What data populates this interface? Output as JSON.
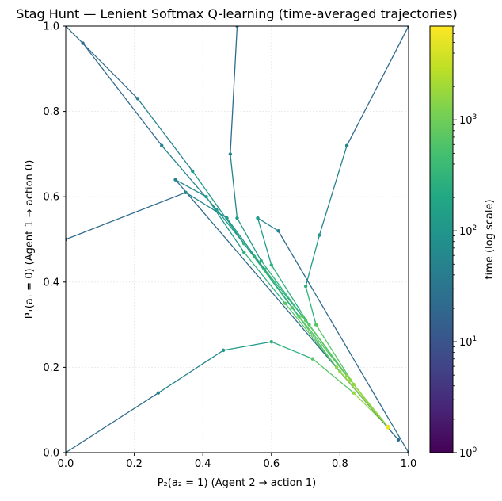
{
  "chart_data": {
    "type": "line",
    "title": "Stag Hunt — Lenient Softmax Q-learning (time-averaged trajectories)",
    "xlabel": "P₂(a₂ = 1)  (Agent 2 → action 1)",
    "ylabel": "P₁(a₁ = 0)  (Agent 1 → action 0)",
    "xlim": [
      0,
      1
    ],
    "ylim": [
      0,
      1
    ],
    "x_ticks": [
      "0.0",
      "0.2",
      "0.4",
      "0.6",
      "0.8",
      "1.0"
    ],
    "y_ticks": [
      "0.0",
      "0.2",
      "0.4",
      "0.6",
      "0.8",
      "1.0"
    ],
    "grid": true,
    "colorbar": {
      "label": "time (log scale)",
      "colormap": "viridis",
      "scale": "log",
      "range": [
        1,
        7000
      ],
      "ticks": [
        {
          "value": 1,
          "base": "10",
          "exp": "0"
        },
        {
          "value": 10,
          "base": "10",
          "exp": "1"
        },
        {
          "value": 100,
          "base": "10",
          "exp": "2"
        },
        {
          "value": 1000,
          "base": "10",
          "exp": "3"
        }
      ]
    },
    "attractor": {
      "x": 0.94,
      "y": 0.06
    },
    "corner_starts": [
      [
        0,
        0
      ],
      [
        0,
        1
      ],
      [
        1,
        0
      ],
      [
        1,
        1
      ]
    ],
    "series": [
      {
        "points": [
          [
            0.0,
            1.0
          ],
          [
            0.21,
            0.83
          ],
          [
            0.37,
            0.66
          ],
          [
            0.52,
            0.49
          ],
          [
            0.66,
            0.34
          ],
          [
            0.79,
            0.2
          ],
          [
            0.94,
            0.06
          ]
        ]
      },
      {
        "points": [
          [
            1.0,
            1.0
          ],
          [
            0.82,
            0.72
          ],
          [
            0.74,
            0.51
          ],
          [
            0.7,
            0.39
          ],
          [
            0.73,
            0.3
          ],
          [
            0.84,
            0.16
          ],
          [
            0.94,
            0.06
          ]
        ]
      },
      {
        "points": [
          [
            0.0,
            0.0
          ],
          [
            0.27,
            0.14
          ],
          [
            0.46,
            0.24
          ],
          [
            0.6,
            0.26
          ],
          [
            0.72,
            0.22
          ],
          [
            0.84,
            0.14
          ],
          [
            0.94,
            0.06
          ]
        ]
      },
      {
        "points": [
          [
            1.0,
            0.0
          ],
          [
            0.62,
            0.52
          ],
          [
            0.56,
            0.55
          ],
          [
            0.6,
            0.44
          ],
          [
            0.71,
            0.3
          ],
          [
            0.83,
            0.17
          ],
          [
            0.94,
            0.06
          ]
        ]
      },
      {
        "points": [
          [
            0.05,
            0.96
          ],
          [
            0.28,
            0.72
          ],
          [
            0.44,
            0.57
          ],
          [
            0.55,
            0.46
          ],
          [
            0.68,
            0.32
          ],
          [
            0.82,
            0.18
          ],
          [
            0.94,
            0.06
          ]
        ]
      },
      {
        "points": [
          [
            0.97,
            0.03
          ],
          [
            0.32,
            0.64
          ],
          [
            0.41,
            0.6
          ],
          [
            0.52,
            0.47
          ],
          [
            0.64,
            0.35
          ],
          [
            0.8,
            0.19
          ],
          [
            0.94,
            0.06
          ]
        ]
      },
      {
        "points": [
          [
            0.0,
            0.5
          ],
          [
            0.35,
            0.61
          ],
          [
            0.47,
            0.55
          ],
          [
            0.58,
            0.43
          ],
          [
            0.7,
            0.31
          ],
          [
            0.83,
            0.17
          ],
          [
            0.94,
            0.06
          ]
        ]
      },
      {
        "points": [
          [
            0.5,
            1.0
          ],
          [
            0.48,
            0.7
          ],
          [
            0.5,
            0.55
          ],
          [
            0.57,
            0.45
          ],
          [
            0.69,
            0.32
          ],
          [
            0.82,
            0.18
          ],
          [
            0.94,
            0.06
          ]
        ]
      }
    ]
  }
}
